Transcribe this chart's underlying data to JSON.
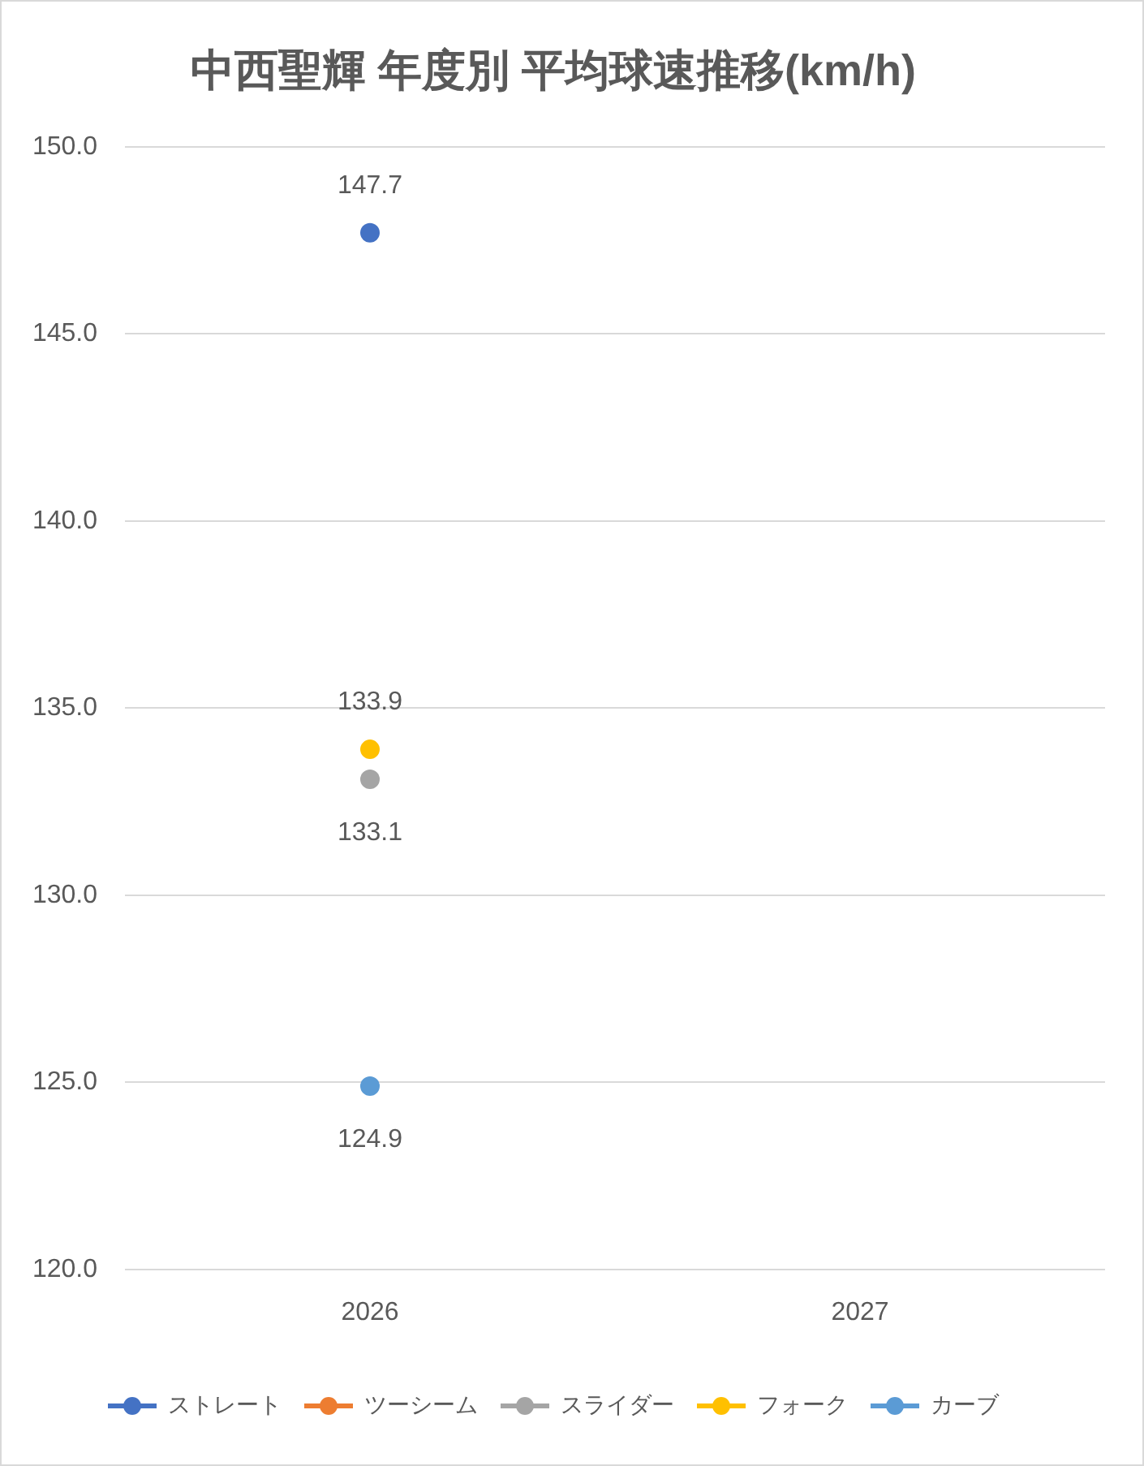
{
  "chart_data": {
    "type": "line",
    "title": "中西聖輝 年度別 平均球速推移(km/h)",
    "categories": [
      "2026",
      "2027"
    ],
    "series": [
      {
        "name": "ストレート",
        "color": "#4472c4",
        "values": [
          147.7,
          null
        ]
      },
      {
        "name": "ツーシーム",
        "color": "#ed7d31",
        "values": [
          null,
          null
        ]
      },
      {
        "name": "スライダー",
        "color": "#a5a5a5",
        "values": [
          133.1,
          null
        ]
      },
      {
        "name": "フォーク",
        "color": "#ffc000",
        "values": [
          133.9,
          null
        ]
      },
      {
        "name": "カーブ",
        "color": "#5b9bd5",
        "values": [
          124.9,
          null
        ]
      }
    ],
    "ylim": [
      120,
      150
    ],
    "yticks": [
      {
        "value": 120,
        "label": "120.0"
      },
      {
        "value": 125,
        "label": "125.0"
      },
      {
        "value": 130,
        "label": "130.0"
      },
      {
        "value": 135,
        "label": "135.0"
      },
      {
        "value": 140,
        "label": "140.0"
      },
      {
        "value": 145,
        "label": "145.0"
      },
      {
        "value": 150,
        "label": "150.0"
      }
    ],
    "grid": "y",
    "legend": "bottom",
    "marker": "circle",
    "data_labels": true
  }
}
